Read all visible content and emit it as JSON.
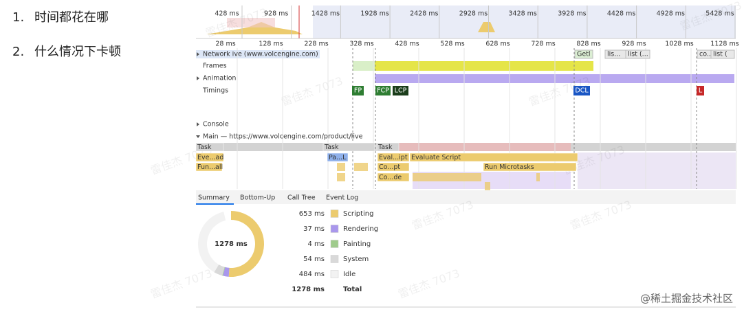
{
  "slide": {
    "items": [
      {
        "number": "1.",
        "text": "时间都花在哪"
      },
      {
        "number": "2.",
        "text": "什么情况下卡顿"
      }
    ]
  },
  "devtools": {
    "overview_ticks": [
      "428 ms",
      "928 ms",
      "1428 ms",
      "1928 ms",
      "2428 ms",
      "2928 ms",
      "3428 ms",
      "3928 ms",
      "4428 ms",
      "4928 ms",
      "5428 ms"
    ],
    "ruler_ticks": [
      "28 ms",
      "128 ms",
      "228 ms",
      "328 ms",
      "428 ms",
      "528 ms",
      "628 ms",
      "728 ms",
      "828 ms",
      "928 ms",
      "1028 ms",
      "1128 ms"
    ],
    "tracks": [
      "Network ive (www.volcengine.com)",
      "Frames",
      "Animation",
      "Timings",
      "Console",
      "Main — https://www.volcengine.com/product/live"
    ],
    "network_items": [
      "Getl",
      "lis...",
      "list (...",
      "co...",
      "list ("
    ],
    "timings": [
      "FP",
      "FCP",
      "LCP",
      "DCL",
      "L"
    ],
    "flame": [
      "Task",
      "Task",
      "Task",
      "Eve...ad",
      "Pa...L",
      "Eval...ipt",
      "Evaluate Script",
      "Fun...all",
      "Co...pt",
      "Run Microtasks",
      "Co...de"
    ],
    "tabs": [
      "Summary",
      "Bottom-Up",
      "Call Tree",
      "Event Log"
    ],
    "summary": {
      "categories": [
        {
          "name": "Scripting",
          "value": 653,
          "label": "653 ms",
          "color": "#eccb6e"
        },
        {
          "name": "Rendering",
          "value": 37,
          "label": "37 ms",
          "color": "#a997ec"
        },
        {
          "name": "Painting",
          "value": 4,
          "label": "4 ms",
          "color": "#9fcb8c"
        },
        {
          "name": "System",
          "value": 54,
          "label": "54 ms",
          "color": "#d9d9d9"
        },
        {
          "name": "Idle",
          "value": 484,
          "label": "484 ms",
          "color": "#f2f2f2"
        }
      ],
      "total": {
        "name": "Total",
        "value": 1278,
        "label": "1278 ms"
      }
    }
  },
  "watermarks": {
    "credit": "@稀土掘金技术社区",
    "faint": "雷佳杰 7073"
  }
}
